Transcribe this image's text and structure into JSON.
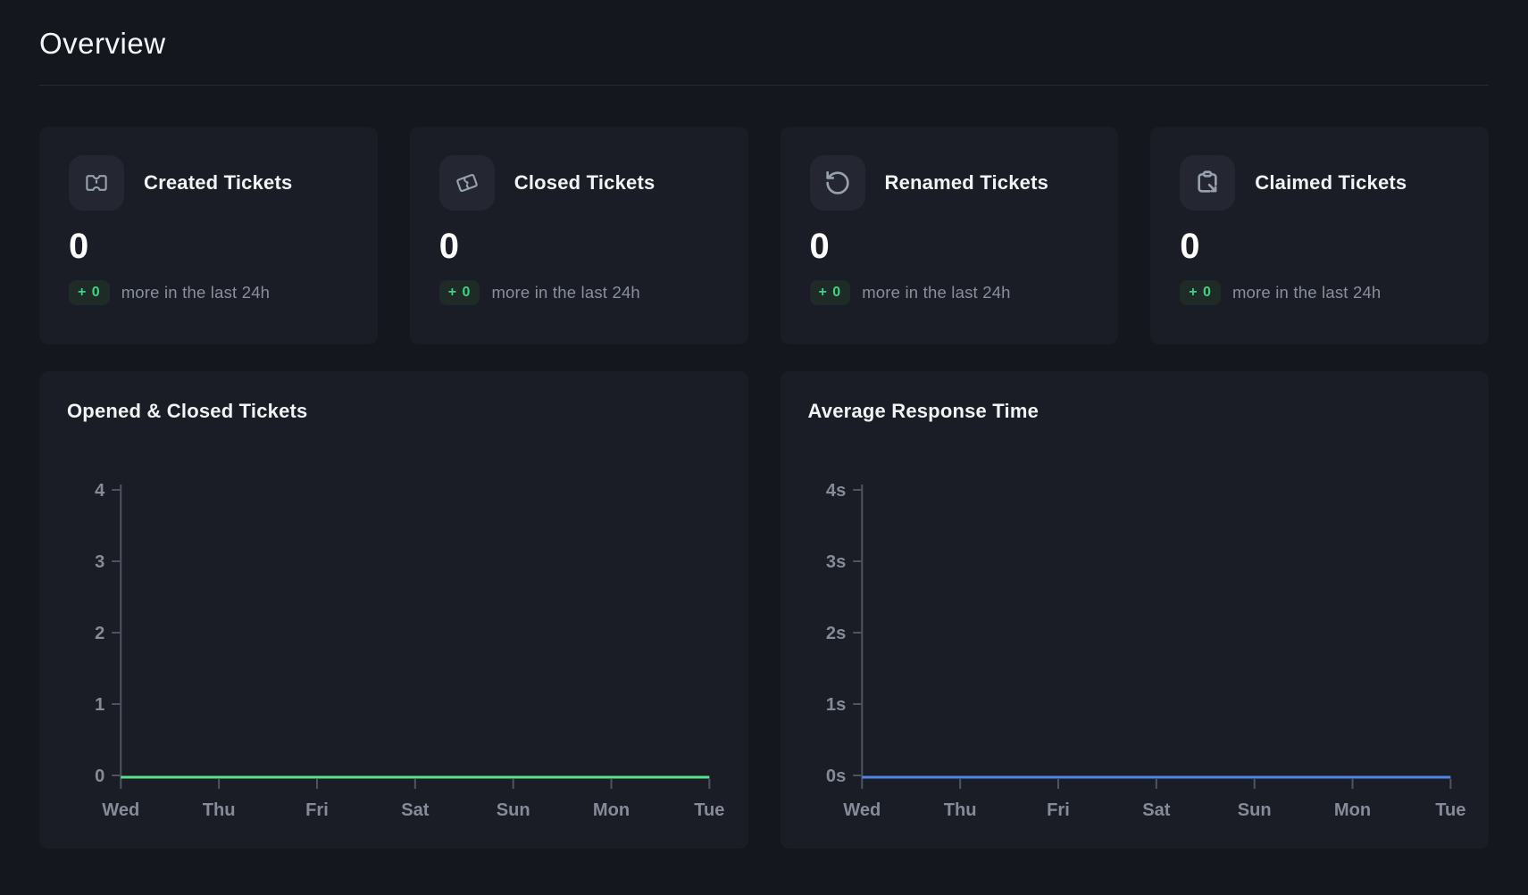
{
  "page": {
    "title": "Overview"
  },
  "stat_cards": [
    {
      "title": "Created Tickets",
      "icon": "ticket-icon",
      "value": "0",
      "badge": "+ 0",
      "suffix": "more in the last 24h"
    },
    {
      "title": "Closed Tickets",
      "icon": "ticket-torn-icon",
      "value": "0",
      "badge": "+ 0",
      "suffix": "more in the last 24h"
    },
    {
      "title": "Renamed Tickets",
      "icon": "rotate-ccw-icon",
      "value": "0",
      "badge": "+ 0",
      "suffix": "more in the last 24h"
    },
    {
      "title": "Claimed Tickets",
      "icon": "clipboard-arrow-icon",
      "value": "0",
      "badge": "+ 0",
      "suffix": "more in the last 24h"
    }
  ],
  "chart_data": [
    {
      "type": "line",
      "title": "Opened & Closed Tickets",
      "categories": [
        "Wed",
        "Thu",
        "Fri",
        "Sat",
        "Sun",
        "Mon",
        "Tue"
      ],
      "series": [
        {
          "name": "Tickets",
          "color": "#58e28b",
          "values": [
            0,
            0,
            0,
            0,
            0,
            0,
            0
          ]
        }
      ],
      "ylim": [
        0,
        4
      ],
      "ytick_labels": [
        "0",
        "1",
        "2",
        "3",
        "4"
      ],
      "grid": false,
      "legend": "none"
    },
    {
      "type": "line",
      "title": "Average Response Time",
      "categories": [
        "Wed",
        "Thu",
        "Fri",
        "Sat",
        "Sun",
        "Mon",
        "Tue"
      ],
      "series": [
        {
          "name": "Response Time",
          "color": "#4e87e4",
          "values": [
            0,
            0,
            0,
            0,
            0,
            0,
            0
          ]
        }
      ],
      "ylim": [
        0,
        4
      ],
      "ytick_labels": [
        "0s",
        "1s",
        "2s",
        "3s",
        "4s"
      ],
      "grid": false,
      "legend": "none"
    }
  ],
  "colors": {
    "page_bg": "#15171f",
    "card_bg": "#1a1d26",
    "icon_bg": "#242732",
    "icon_stroke": "#98a0ae",
    "text_primary": "#f2f3f5",
    "text_muted": "#8a8f9d",
    "badge_bg": "#1e2b26",
    "badge_text": "#40d385",
    "divider": "#262a35",
    "axis": "#4e5462",
    "axis_label": "#858b99",
    "green": "#58e28b",
    "blue": "#4e87e4"
  }
}
